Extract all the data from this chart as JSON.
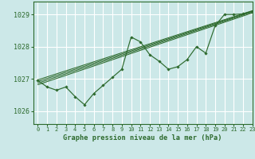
{
  "title": "Graphe pression niveau de la mer (hPa)",
  "bg_color": "#cce8e8",
  "grid_color": "#ffffff",
  "line_color": "#2d6a2d",
  "xlim": [
    -0.5,
    23
  ],
  "ylim": [
    1025.6,
    1029.4
  ],
  "yticks": [
    1026,
    1027,
    1028,
    1029
  ],
  "xticks": [
    0,
    1,
    2,
    3,
    4,
    5,
    6,
    7,
    8,
    9,
    10,
    11,
    12,
    13,
    14,
    15,
    16,
    17,
    18,
    19,
    20,
    21,
    22,
    23
  ],
  "main_series": [
    [
      0,
      1026.95
    ],
    [
      1,
      1026.75
    ],
    [
      2,
      1026.65
    ],
    [
      3,
      1026.75
    ],
    [
      4,
      1026.45
    ],
    [
      5,
      1026.2
    ],
    [
      6,
      1026.55
    ],
    [
      7,
      1026.8
    ],
    [
      8,
      1027.05
    ],
    [
      9,
      1027.3
    ],
    [
      10,
      1028.3
    ],
    [
      11,
      1028.15
    ],
    [
      12,
      1027.75
    ],
    [
      13,
      1027.55
    ],
    [
      14,
      1027.3
    ],
    [
      15,
      1027.38
    ],
    [
      16,
      1027.6
    ],
    [
      17,
      1028.0
    ],
    [
      18,
      1027.8
    ],
    [
      19,
      1028.65
    ],
    [
      20,
      1029.0
    ],
    [
      21,
      1029.0
    ],
    [
      22,
      1029.02
    ],
    [
      23,
      1029.1
    ]
  ],
  "smooth_lines": [
    [
      [
        0,
        1026.82
      ],
      [
        23,
        1029.05
      ]
    ],
    [
      [
        0,
        1026.87
      ],
      [
        23,
        1029.08
      ]
    ],
    [
      [
        0,
        1026.92
      ],
      [
        23,
        1029.1
      ]
    ],
    [
      [
        0,
        1026.97
      ],
      [
        23,
        1029.12
      ]
    ]
  ],
  "figsize": [
    3.2,
    2.0
  ],
  "dpi": 100
}
